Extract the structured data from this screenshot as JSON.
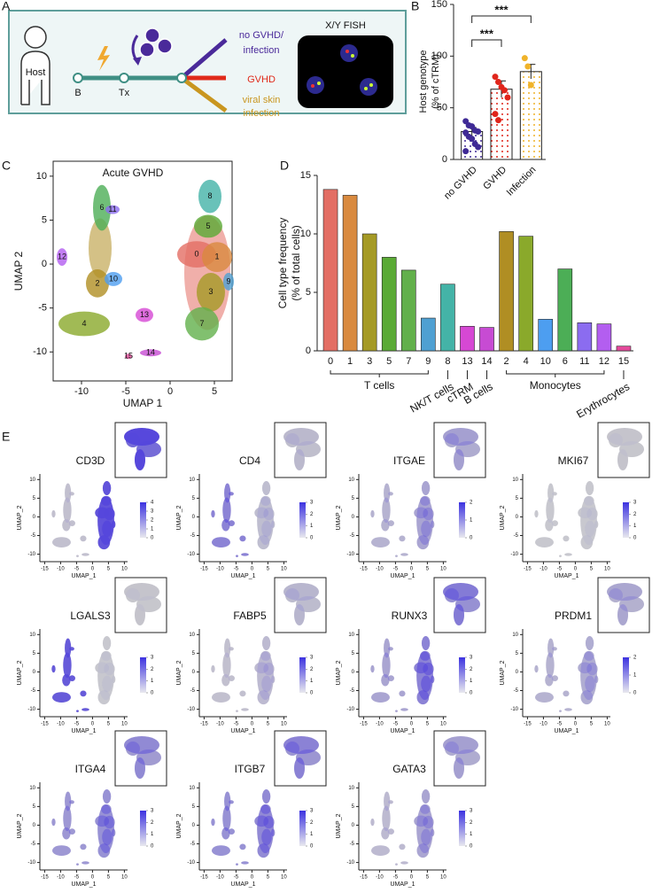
{
  "panel_labels": [
    "A",
    "B",
    "C",
    "D",
    "E"
  ],
  "schematic": {
    "host": "Host",
    "timepoints": [
      "B",
      "Tx"
    ],
    "outcomes": [
      {
        "lines": [
          "no GVHD/",
          "infection"
        ],
        "color": "#4a2a9a"
      },
      {
        "lines": [
          "GVHD"
        ],
        "color": "#e02a1a"
      },
      {
        "lines": [
          "viral skin",
          "infection"
        ],
        "color": "#c9961f"
      }
    ],
    "fish_title": "X/Y FISH"
  },
  "chart_data": [
    {
      "type": "bar",
      "categories": [
        "no GVHD",
        "GVHD",
        "Infection"
      ],
      "values": [
        27,
        68,
        85
      ],
      "errors": [
        4,
        8,
        7
      ],
      "colors": [
        "#3f2a96",
        "#e0251b",
        "#f0b32a"
      ],
      "points": [
        [
          37,
          33,
          32,
          28,
          27,
          26,
          22,
          20,
          15,
          12,
          8
        ],
        [
          80,
          75,
          70,
          67,
          60,
          44,
          38
        ],
        [
          98,
          90,
          72
        ]
      ],
      "ylim": [
        0,
        150
      ],
      "yticks": [
        0,
        50,
        100,
        150
      ],
      "y_label": [
        "Host genotype",
        "(% of cTRM)"
      ],
      "significance": [
        {
          "pair": [
            "no GVHD",
            "GVHD"
          ],
          "label": "***"
        },
        {
          "pair": [
            "no GVHD",
            "Infection"
          ],
          "label": "***"
        }
      ]
    },
    {
      "type": "umap",
      "title": "Acute GVHD",
      "clusters": [
        "0",
        "1",
        "2",
        "3",
        "4",
        "5",
        "6",
        "7",
        "8",
        "9",
        "10",
        "11",
        "12",
        "13",
        "14",
        "15"
      ],
      "xlim": [
        -13.2,
        7
      ],
      "ylim": [
        -13.3,
        11.7
      ],
      "xticks": [
        -10,
        -5,
        0,
        5
      ],
      "yticks": [
        -10,
        -5,
        0,
        5,
        10
      ],
      "x_label": "UMAP 1",
      "y_label": "UMAP 2"
    },
    {
      "type": "bar",
      "categories": [
        "0",
        "1",
        "3",
        "5",
        "7",
        "9",
        "8",
        "13",
        "14",
        "2",
        "4",
        "10",
        "6",
        "11",
        "12",
        "15"
      ],
      "values": [
        13.8,
        13.3,
        10,
        8,
        6.9,
        2.8,
        5.7,
        2.1,
        2.0,
        10.2,
        9.8,
        2.7,
        7.0,
        2.4,
        2.3,
        0.4
      ],
      "colors": [
        "#e36e64",
        "#d98a3f",
        "#a59a25",
        "#5aaa35",
        "#62b04b",
        "#4fa0d2",
        "#44b3a7",
        "#d648d4",
        "#c74bd3",
        "#b08e23",
        "#8aa92b",
        "#4d9ef0",
        "#4cae56",
        "#8b6cf0",
        "#b35ef0",
        "#e34a9a"
      ],
      "ylim": [
        0,
        15
      ],
      "yticks": [
        0,
        5,
        10,
        15
      ],
      "y_label": [
        "Cell type frequency",
        "(% of total cells)"
      ],
      "groups": [
        {
          "label": "T cells",
          "members": [
            "0",
            "1",
            "3",
            "5",
            "7",
            "9"
          ]
        },
        {
          "label": "NK/T cells",
          "members": [
            "8"
          ]
        },
        {
          "label": "cTRM",
          "members": [
            "13"
          ]
        },
        {
          "label": "B cells",
          "members": [
            "14"
          ]
        },
        {
          "label": "Monocytes",
          "members": [
            "2",
            "4",
            "10",
            "6",
            "11",
            "12"
          ]
        },
        {
          "label": "Erythrocytes",
          "members": [
            "15"
          ]
        }
      ]
    }
  ],
  "feature_plots": {
    "x_label": "UMAP_1",
    "y_label": "UMAP_2",
    "xlim": [
      -16.5,
      11
    ],
    "ylim": [
      -12,
      11.5
    ],
    "xticks": [
      -15,
      -10,
      -5,
      0,
      5,
      10
    ],
    "yticks": [
      -10,
      -5,
      0,
      5,
      10
    ],
    "panels": [
      {
        "gene": "CD3D",
        "scale_ticks": [
          0,
          1,
          2,
          3,
          4
        ]
      },
      {
        "gene": "CD4",
        "scale_ticks": [
          0,
          1,
          2,
          3
        ]
      },
      {
        "gene": "ITGAE",
        "scale_ticks": [
          0,
          1,
          2
        ]
      },
      {
        "gene": "MKI67",
        "scale_ticks": [
          0,
          1,
          2,
          3
        ]
      },
      {
        "gene": "LGALS3",
        "scale_ticks": [
          0,
          1,
          2,
          3
        ]
      },
      {
        "gene": "FABP5",
        "scale_ticks": [
          0,
          1,
          2,
          3
        ]
      },
      {
        "gene": "RUNX3",
        "scale_ticks": [
          0,
          1,
          2,
          3
        ]
      },
      {
        "gene": "PRDM1",
        "scale_ticks": [
          0,
          1,
          2
        ]
      },
      {
        "gene": "ITGA4",
        "scale_ticks": [
          0,
          1,
          2,
          3
        ]
      },
      {
        "gene": "ITGB7",
        "scale_ticks": [
          0,
          1,
          2,
          3
        ]
      },
      {
        "gene": "GATA3",
        "scale_ticks": [
          0,
          1,
          2,
          3
        ]
      }
    ]
  }
}
